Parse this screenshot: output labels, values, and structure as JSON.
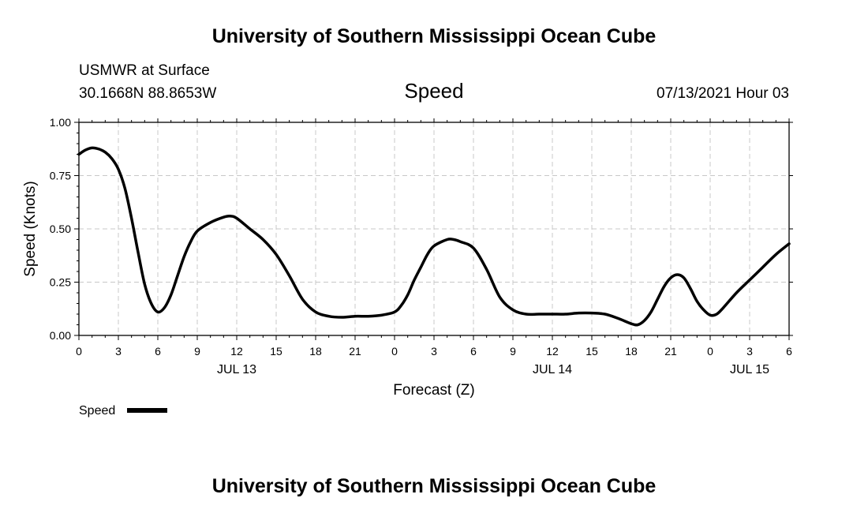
{
  "header": {
    "top_title": "University of Southern Mississippi Ocean Cube",
    "station": "USMWR at Surface",
    "coordinates": "30.1668N  88.8653W",
    "variable": "Speed",
    "timestamp": "07/13/2021 Hour 03",
    "bottom_title": "University of Southern Mississippi Ocean Cube"
  },
  "legend": {
    "label": "Speed"
  },
  "chart_data": {
    "type": "line",
    "title": "Speed",
    "xlabel": "Forecast (Z)",
    "ylabel": "Speed (Knots)",
    "xlim": [
      0,
      54
    ],
    "ylim": [
      0,
      1
    ],
    "grid": true,
    "legend_position": "bottom-left",
    "x_unit": "hours from 00Z JUL 13",
    "x_ticks": [
      {
        "x": 0,
        "label": "0"
      },
      {
        "x": 3,
        "label": "3"
      },
      {
        "x": 6,
        "label": "6"
      },
      {
        "x": 9,
        "label": "9"
      },
      {
        "x": 12,
        "label": "12"
      },
      {
        "x": 15,
        "label": "15"
      },
      {
        "x": 18,
        "label": "18"
      },
      {
        "x": 21,
        "label": "21"
      },
      {
        "x": 24,
        "label": "0"
      },
      {
        "x": 27,
        "label": "3"
      },
      {
        "x": 30,
        "label": "6"
      },
      {
        "x": 33,
        "label": "9"
      },
      {
        "x": 36,
        "label": "12"
      },
      {
        "x": 39,
        "label": "15"
      },
      {
        "x": 42,
        "label": "18"
      },
      {
        "x": 45,
        "label": "21"
      },
      {
        "x": 48,
        "label": "0"
      },
      {
        "x": 51,
        "label": "3"
      },
      {
        "x": 54,
        "label": "6"
      }
    ],
    "date_labels": [
      {
        "x": 12,
        "label": "JUL 13"
      },
      {
        "x": 36,
        "label": "JUL 14"
      },
      {
        "x": 51,
        "label": "JUL 15"
      }
    ],
    "y_ticks": [
      {
        "y": 0.0,
        "label": "0.00"
      },
      {
        "y": 0.25,
        "label": "0.25"
      },
      {
        "y": 0.5,
        "label": "0.50"
      },
      {
        "y": 0.75,
        "label": "0.75"
      },
      {
        "y": 1.0,
        "label": "1.00"
      }
    ],
    "series": [
      {
        "name": "Speed",
        "color": "#000000",
        "x": [
          0,
          0.5,
          1,
          1.5,
          2,
          2.5,
          3,
          3.5,
          4,
          4.5,
          5,
          5.5,
          6,
          6.5,
          7,
          7.5,
          8,
          8.5,
          9,
          10,
          11,
          11.5,
          12,
          13,
          14,
          15,
          16,
          17,
          18,
          19,
          20,
          21,
          22,
          23,
          24,
          24.5,
          25,
          25.5,
          26,
          26.5,
          27,
          28,
          28.5,
          29,
          30,
          31,
          32,
          33,
          34,
          35,
          36,
          37,
          38,
          39,
          40,
          41,
          42,
          42.5,
          43,
          43.5,
          44,
          44.5,
          45,
          45.5,
          46,
          46.5,
          47,
          47.5,
          48,
          48.5,
          49,
          50,
          51,
          52,
          53,
          54
        ],
        "y": [
          0.85,
          0.87,
          0.88,
          0.875,
          0.86,
          0.83,
          0.78,
          0.69,
          0.55,
          0.39,
          0.24,
          0.15,
          0.11,
          0.13,
          0.19,
          0.28,
          0.37,
          0.44,
          0.49,
          0.53,
          0.555,
          0.56,
          0.55,
          0.5,
          0.45,
          0.38,
          0.28,
          0.17,
          0.11,
          0.09,
          0.085,
          0.09,
          0.09,
          0.095,
          0.11,
          0.14,
          0.19,
          0.26,
          0.32,
          0.38,
          0.42,
          0.45,
          0.45,
          0.44,
          0.41,
          0.31,
          0.18,
          0.12,
          0.1,
          0.1,
          0.1,
          0.1,
          0.105,
          0.105,
          0.1,
          0.08,
          0.055,
          0.05,
          0.07,
          0.11,
          0.17,
          0.23,
          0.27,
          0.285,
          0.27,
          0.22,
          0.16,
          0.12,
          0.095,
          0.1,
          0.13,
          0.2,
          0.26,
          0.32,
          0.38,
          0.43
        ]
      }
    ]
  }
}
